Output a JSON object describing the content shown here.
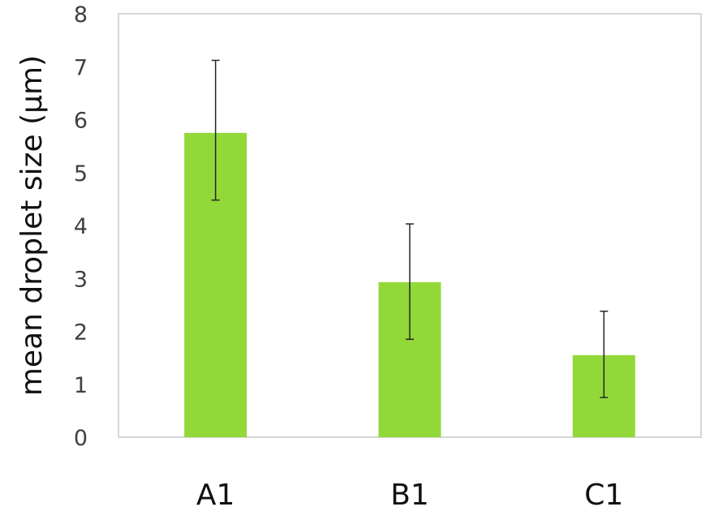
{
  "chart_data": {
    "type": "bar",
    "title": "",
    "xlabel": "",
    "ylabel": "mean droplet size (μm)",
    "categories": [
      "A1",
      "B1",
      "C1"
    ],
    "values": [
      5.75,
      2.93,
      1.55
    ],
    "error_upper": [
      7.12,
      4.03,
      2.38
    ],
    "error_lower": [
      4.48,
      1.85,
      0.75
    ],
    "ylim": [
      0,
      8
    ],
    "yticks": [
      "0",
      "1",
      "2",
      "3",
      "4",
      "5",
      "6",
      "7",
      "8"
    ],
    "grid": false,
    "legend": "none",
    "colors": {
      "bar": "#92d839",
      "error_bar": "#262626",
      "frame": "#c8c8c8",
      "tick_text": "#404040",
      "label_text": "#111111"
    }
  }
}
